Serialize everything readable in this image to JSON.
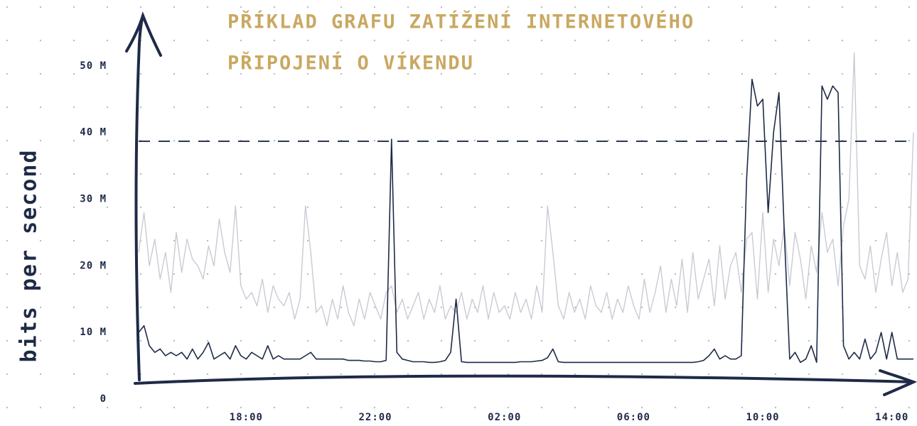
{
  "chart_data": {
    "type": "line",
    "title": [
      "PŘÍKLAD GRAFU ZATÍŽENÍ INTERNETOVÉHO",
      "PŘIPOJENÍ O VÍKENDU"
    ],
    "ylabel": "bits per second",
    "x": [
      "14:40",
      "14:50",
      "15:00",
      "15:10",
      "15:20",
      "15:30",
      "15:40",
      "15:50",
      "16:00",
      "16:10",
      "16:20",
      "16:30",
      "16:40",
      "16:50",
      "17:00",
      "17:10",
      "17:20",
      "17:30",
      "17:40",
      "17:50",
      "18:00",
      "18:10",
      "18:20",
      "18:30",
      "18:40",
      "18:50",
      "19:00",
      "19:10",
      "19:20",
      "19:30",
      "19:40",
      "19:50",
      "20:00",
      "20:10",
      "20:20",
      "20:30",
      "20:40",
      "20:50",
      "21:00",
      "21:10",
      "21:20",
      "21:30",
      "21:40",
      "21:50",
      "22:00",
      "22:10",
      "22:20",
      "22:30",
      "22:40",
      "22:50",
      "23:00",
      "23:10",
      "23:20",
      "23:30",
      "23:40",
      "23:50",
      "00:00",
      "00:10",
      "00:20",
      "00:30",
      "00:40",
      "00:50",
      "01:00",
      "01:10",
      "01:20",
      "01:30",
      "01:40",
      "01:50",
      "02:00",
      "02:10",
      "02:20",
      "02:30",
      "02:40",
      "02:50",
      "03:00",
      "03:10",
      "03:20",
      "03:30",
      "03:40",
      "03:50",
      "04:00",
      "04:10",
      "04:20",
      "04:30",
      "04:40",
      "04:50",
      "05:00",
      "05:10",
      "05:20",
      "05:30",
      "05:40",
      "05:50",
      "06:00",
      "06:10",
      "06:20",
      "06:30",
      "06:40",
      "06:50",
      "07:00",
      "07:10",
      "07:20",
      "07:30",
      "07:40",
      "07:50",
      "08:00",
      "08:10",
      "08:20",
      "08:30",
      "08:40",
      "08:50",
      "09:00",
      "09:10",
      "09:20",
      "09:30",
      "09:40",
      "09:50",
      "10:00",
      "10:10",
      "10:20",
      "10:30",
      "10:40",
      "10:50",
      "11:00",
      "11:10",
      "11:20",
      "11:30",
      "11:40",
      "11:50",
      "12:00",
      "12:10",
      "12:20",
      "12:30",
      "12:40",
      "12:50",
      "13:00",
      "13:10",
      "13:20",
      "13:30",
      "13:40",
      "13:50",
      "14:00",
      "14:10",
      "14:20",
      "14:30",
      "14:40"
    ],
    "xticks": [
      "18:00",
      "22:00",
      "02:00",
      "06:00",
      "10:00",
      "14:00"
    ],
    "ylim": [
      0,
      55000000
    ],
    "yticks": [
      0,
      {
        "value": 10000000,
        "label": "10 M"
      },
      {
        "value": 20000000,
        "label": "20 M"
      },
      {
        "value": 30000000,
        "label": "30 M"
      },
      {
        "value": 40000000,
        "label": "40 M"
      },
      {
        "value": 50000000,
        "label": "50 M"
      }
    ],
    "reference_line": 38700000,
    "grid": "dots",
    "series": [
      {
        "color": "#c9cbd4",
        "values": [
          22000000,
          28000000,
          20000000,
          24000000,
          18000000,
          22000000,
          16000000,
          25000000,
          19000000,
          24000000,
          21000000,
          20000000,
          18000000,
          23000000,
          20000000,
          27000000,
          22000000,
          19000000,
          29000000,
          17000000,
          15000000,
          16000000,
          14000000,
          18000000,
          13000000,
          17000000,
          15000000,
          14000000,
          16000000,
          12000000,
          15000000,
          29000000,
          22000000,
          13000000,
          14000000,
          11000000,
          15000000,
          12000000,
          17000000,
          13000000,
          11000000,
          15000000,
          12000000,
          16000000,
          14000000,
          12000000,
          16000000,
          17000000,
          13000000,
          15000000,
          12000000,
          14000000,
          16000000,
          12000000,
          15000000,
          13000000,
          17000000,
          12000000,
          14000000,
          13000000,
          16000000,
          12000000,
          15000000,
          13000000,
          17000000,
          12000000,
          16000000,
          13000000,
          14000000,
          12000000,
          16000000,
          13000000,
          15000000,
          12000000,
          17000000,
          13000000,
          29000000,
          22000000,
          14000000,
          12000000,
          16000000,
          13000000,
          15000000,
          12000000,
          17000000,
          14000000,
          13000000,
          16000000,
          12000000,
          15000000,
          13000000,
          17000000,
          14000000,
          12000000,
          18000000,
          13000000,
          16000000,
          20000000,
          13000000,
          18000000,
          14000000,
          21000000,
          13000000,
          22000000,
          15000000,
          18000000,
          21000000,
          14000000,
          23000000,
          15000000,
          20000000,
          22000000,
          16000000,
          24000000,
          25000000,
          15000000,
          28000000,
          16000000,
          24000000,
          20000000,
          26000000,
          17000000,
          25000000,
          21000000,
          15000000,
          23000000,
          19000000,
          28000000,
          22000000,
          24000000,
          17000000,
          26000000,
          30000000,
          52000000,
          20000000,
          18000000,
          23000000,
          16000000,
          21000000,
          25000000,
          17000000,
          22000000,
          16000000,
          18000000,
          40000000
        ]
      },
      {
        "color": "#1e2a47",
        "values": [
          10000000,
          11000000,
          8000000,
          7000000,
          7500000,
          6500000,
          7000000,
          6500000,
          7000000,
          6000000,
          7500000,
          6000000,
          7000000,
          8500000,
          6000000,
          6500000,
          7000000,
          6000000,
          8000000,
          6500000,
          6000000,
          7000000,
          6500000,
          6000000,
          8000000,
          6000000,
          6500000,
          6000000,
          6000000,
          6000000,
          6000000,
          6500000,
          7000000,
          6000000,
          6000000,
          6000000,
          6000000,
          6000000,
          6000000,
          5800000,
          5800000,
          5800000,
          5700000,
          5700000,
          5600000,
          5600000,
          5800000,
          39000000,
          7000000,
          6000000,
          5800000,
          5600000,
          5600000,
          5600000,
          5500000,
          5500000,
          5600000,
          5800000,
          7000000,
          15000000,
          5600000,
          5500000,
          5500000,
          5500000,
          5500000,
          5500000,
          5500000,
          5500000,
          5500000,
          5500000,
          5500000,
          5600000,
          5600000,
          5600000,
          5700000,
          5800000,
          6200000,
          7500000,
          5600000,
          5500000,
          5500000,
          5500000,
          5500000,
          5500000,
          5500000,
          5500000,
          5500000,
          5500000,
          5500000,
          5500000,
          5500000,
          5500000,
          5500000,
          5500000,
          5500000,
          5500000,
          5500000,
          5500000,
          5500000,
          5500000,
          5500000,
          5500000,
          5500000,
          5500000,
          5600000,
          5800000,
          6500000,
          7500000,
          6000000,
          6500000,
          6000000,
          6000000,
          6500000,
          33000000,
          48000000,
          44000000,
          45000000,
          28000000,
          40000000,
          46000000,
          25000000,
          6000000,
          7000000,
          5500000,
          6000000,
          8000000,
          5500000,
          47000000,
          45000000,
          47000000,
          46000000,
          8000000,
          6000000,
          7000000,
          6000000,
          9000000,
          6000000,
          7000000,
          10000000,
          6000000,
          10000000,
          6000000,
          6000000,
          6000000,
          6000000
        ]
      }
    ]
  }
}
